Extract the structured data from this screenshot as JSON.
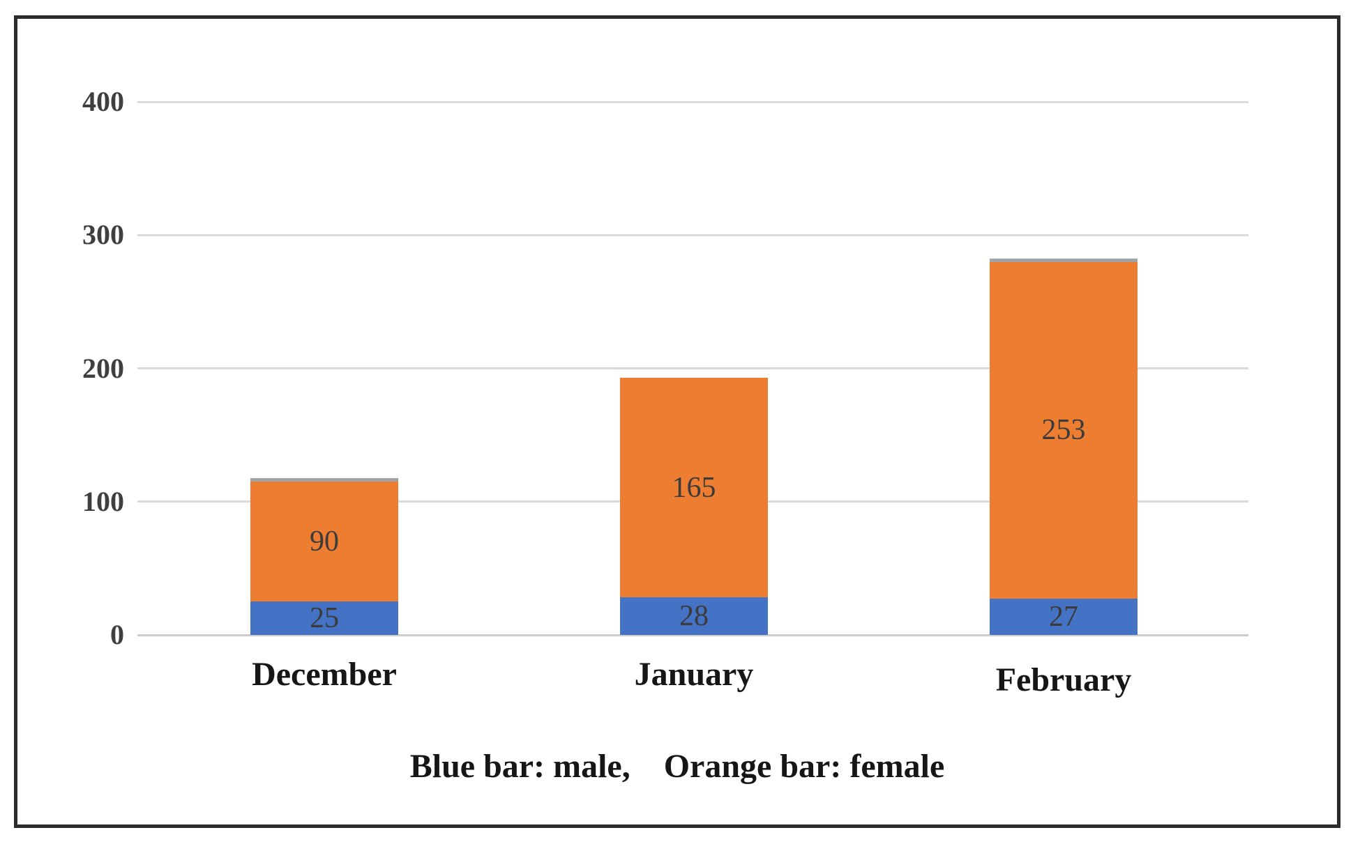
{
  "chart_data": {
    "type": "bar",
    "stacked": true,
    "title": "",
    "xlabel": "",
    "ylabel": "",
    "categories": [
      "December",
      "January",
      "February"
    ],
    "series": [
      {
        "name": "male",
        "color": "#4472C4",
        "values": [
          25,
          28,
          27
        ]
      },
      {
        "name": "female",
        "color": "#ED7D31",
        "values": [
          90,
          165,
          253
        ]
      }
    ],
    "data_labels": {
      "male": [
        "25",
        "28",
        "27"
      ],
      "female": [
        "90",
        "165",
        "253"
      ]
    },
    "gray_top_caps": [
      true,
      false,
      true
    ],
    "yticks": [
      "0",
      "100",
      "200",
      "300",
      "400"
    ],
    "ylim": [
      0,
      400
    ],
    "grid": true,
    "legend_position": "none",
    "caption": "Blue bar: male,    Orange bar: female",
    "colors": {
      "male": "#4472C4",
      "female": "#ED7D31",
      "gridline": "#dadada",
      "axis_line": "#cccccc",
      "tick_text": "#3f3f3f",
      "value_text": "#3b3b3b",
      "label_text": "#161616",
      "gray_cap": "#a0a4a8",
      "frame_border": "#2b2b2b",
      "background": "#ffffff"
    }
  }
}
